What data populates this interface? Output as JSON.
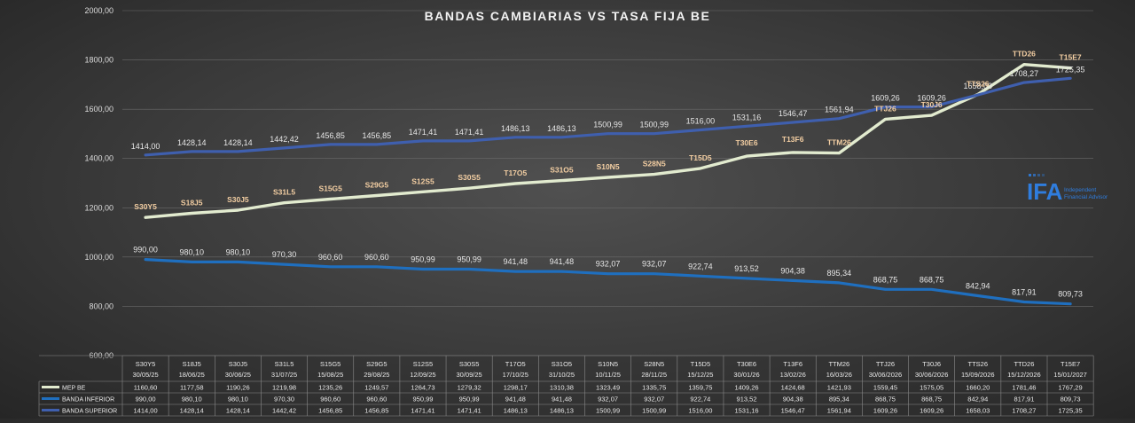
{
  "chart_data": {
    "type": "line",
    "title": "BANDAS CAMBIARIAS VS TASA FIJA BE",
    "ylim": [
      600,
      2000
    ],
    "yticks": [
      "2000,00",
      "1800,00",
      "1600,00",
      "1400,00",
      "1200,00",
      "1000,00",
      "800,00",
      "600,00"
    ],
    "grid": true,
    "categories": [
      "S30Y5",
      "S18J5",
      "S30J5",
      "S31L5",
      "S15G5",
      "S29G5",
      "S12S5",
      "S30S5",
      "T17O5",
      "S31O5",
      "S10N5",
      "S28N5",
      "T15D5",
      "T30E6",
      "T13F6",
      "TTM26",
      "TTJ26",
      "T30J6",
      "TTS26",
      "TTD26",
      "T15E7"
    ],
    "dates": [
      "30/05/25",
      "18/06/25",
      "30/06/25",
      "31/07/25",
      "15/08/25",
      "29/08/25",
      "12/09/25",
      "30/09/25",
      "17/10/25",
      "31/10/25",
      "10/11/25",
      "28/11/25",
      "15/12/25",
      "30/01/26",
      "13/02/26",
      "16/03/26",
      "30/06/2026",
      "30/06/2026",
      "15/09/2026",
      "15/12/2026",
      "15/01/2027"
    ],
    "series": [
      {
        "name": "MEP BE",
        "color": "#e2ebcf",
        "values": [
          1160.6,
          1177.58,
          1190.26,
          1219.98,
          1235.26,
          1249.57,
          1264.73,
          1279.32,
          1298.17,
          1310.38,
          1323.49,
          1335.75,
          1359.75,
          1409.26,
          1424.68,
          1421.93,
          1559.45,
          1575.05,
          1660.2,
          1781.46,
          1767.29
        ],
        "labels": [
          "1160,60",
          "1177,58",
          "1190,26",
          "1219,98",
          "1235,26",
          "1249,57",
          "1264,73",
          "1279,32",
          "1298,17",
          "1310,38",
          "1323,49",
          "1335,75",
          "1359,75",
          "1409,26",
          "1424,68",
          "1421,93",
          "1559,45",
          "1575,05",
          "1660,20",
          "1781,46",
          "1767,29"
        ]
      },
      {
        "name": "BANDA INFERIOR",
        "color": "#1f6fbf",
        "values": [
          990.0,
          980.1,
          980.1,
          970.3,
          960.6,
          960.6,
          950.99,
          950.99,
          941.48,
          941.48,
          932.07,
          932.07,
          922.74,
          913.52,
          904.38,
          895.34,
          868.75,
          868.75,
          842.94,
          817.91,
          809.73
        ],
        "labels": [
          "990,00",
          "980,10",
          "980,10",
          "970,30",
          "960,60",
          "960,60",
          "950,99",
          "950,99",
          "941,48",
          "941,48",
          "932,07",
          "932,07",
          "922,74",
          "913,52",
          "904,38",
          "895,34",
          "868,75",
          "868,75",
          "842,94",
          "817,91",
          "809,73"
        ]
      },
      {
        "name": "BANDA SUPERIOR",
        "color": "#3f5fae",
        "values": [
          1414.0,
          1428.14,
          1428.14,
          1442.42,
          1456.85,
          1456.85,
          1471.41,
          1471.41,
          1486.13,
          1486.13,
          1500.99,
          1500.99,
          1516.0,
          1531.16,
          1546.47,
          1561.94,
          1609.26,
          1609.26,
          1658.03,
          1708.27,
          1725.35
        ],
        "labels": [
          "1414,00",
          "1428,14",
          "1428,14",
          "1442,42",
          "1456,85",
          "1456,85",
          "1471,41",
          "1471,41",
          "1486,13",
          "1486,13",
          "1500,99",
          "1500,99",
          "1516,00",
          "1531,16",
          "1546,47",
          "1561,94",
          "1609,26",
          "1609,26",
          "1658,03",
          "1708,27",
          "1725,35"
        ]
      }
    ]
  },
  "watermark": {
    "brand": "IFA",
    "line1": "Independent",
    "line2": "Financial Advisor",
    "icon": "ifa-logo-icon"
  }
}
